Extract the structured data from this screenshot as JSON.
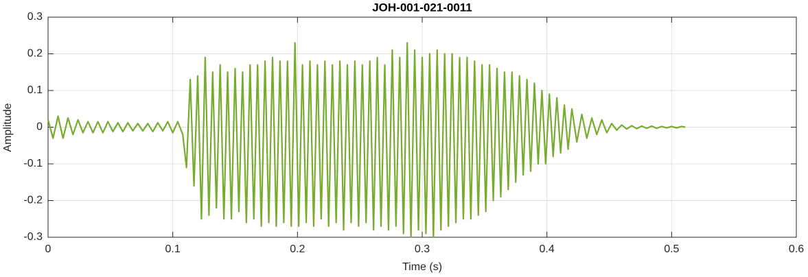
{
  "chart_data": {
    "type": "line",
    "title": "JOH-001-021-0011",
    "x_label": "Time (s)",
    "y_label": "Amplitude",
    "color": "#77ac30",
    "grid": true,
    "xlim": [
      0,
      0.6
    ],
    "xticks": [
      0,
      0.1,
      0.2,
      0.3,
      0.4,
      0.5,
      0.6
    ],
    "ylim": [
      -0.3,
      0.3
    ],
    "yticks": [
      -0.3,
      -0.2,
      -0.1,
      0,
      0.1,
      0.2,
      0.3
    ],
    "x": [
      0,
      0.004,
      0.008,
      0.012,
      0.016,
      0.02,
      0.024,
      0.028,
      0.032,
      0.036,
      0.04,
      0.044,
      0.048,
      0.052,
      0.056,
      0.06,
      0.064,
      0.068,
      0.072,
      0.076,
      0.08,
      0.084,
      0.088,
      0.092,
      0.096,
      0.1,
      0.104,
      0.108,
      0.111,
      0.114,
      0.117,
      0.12,
      0.123,
      0.126,
      0.129,
      0.132,
      0.135,
      0.138,
      0.141,
      0.144,
      0.147,
      0.15,
      0.153,
      0.156,
      0.159,
      0.162,
      0.165,
      0.168,
      0.171,
      0.174,
      0.177,
      0.18,
      0.183,
      0.186,
      0.189,
      0.192,
      0.195,
      0.198,
      0.201,
      0.204,
      0.207,
      0.21,
      0.213,
      0.216,
      0.219,
      0.222,
      0.225,
      0.228,
      0.231,
      0.234,
      0.237,
      0.24,
      0.243,
      0.246,
      0.249,
      0.252,
      0.255,
      0.258,
      0.261,
      0.264,
      0.267,
      0.27,
      0.273,
      0.276,
      0.279,
      0.282,
      0.285,
      0.288,
      0.291,
      0.294,
      0.297,
      0.3,
      0.303,
      0.306,
      0.309,
      0.312,
      0.315,
      0.318,
      0.321,
      0.324,
      0.327,
      0.33,
      0.333,
      0.336,
      0.339,
      0.342,
      0.345,
      0.348,
      0.351,
      0.354,
      0.357,
      0.36,
      0.363,
      0.366,
      0.369,
      0.372,
      0.375,
      0.378,
      0.381,
      0.384,
      0.387,
      0.39,
      0.393,
      0.396,
      0.399,
      0.402,
      0.405,
      0.408,
      0.411,
      0.414,
      0.417,
      0.42,
      0.424,
      0.428,
      0.432,
      0.436,
      0.44,
      0.444,
      0.448,
      0.452,
      0.456,
      0.46,
      0.464,
      0.468,
      0.472,
      0.476,
      0.48,
      0.484,
      0.488,
      0.492,
      0.496,
      0.5,
      0.504,
      0.508,
      0.511
    ],
    "values": [
      0.02,
      -0.03,
      0.03,
      -0.03,
      0.025,
      -0.02,
      0.02,
      -0.015,
      0.015,
      -0.015,
      0.015,
      -0.015,
      0.015,
      -0.012,
      0.012,
      -0.012,
      0.012,
      -0.01,
      0.01,
      -0.01,
      0.01,
      -0.012,
      0.012,
      -0.01,
      0.015,
      -0.015,
      0.015,
      -0.02,
      -0.11,
      0.13,
      -0.16,
      0.14,
      -0.25,
      0.19,
      -0.24,
      0.15,
      -0.22,
      0.17,
      -0.25,
      0.15,
      -0.25,
      0.16,
      -0.23,
      0.15,
      -0.26,
      0.17,
      -0.25,
      0.17,
      -0.27,
      0.18,
      -0.26,
      0.19,
      -0.27,
      0.18,
      -0.26,
      0.18,
      -0.27,
      0.23,
      -0.27,
      0.17,
      -0.26,
      0.18,
      -0.27,
      0.17,
      -0.25,
      0.18,
      -0.27,
      0.17,
      -0.26,
      0.18,
      -0.28,
      0.17,
      -0.26,
      0.18,
      -0.27,
      0.17,
      -0.26,
      0.18,
      -0.28,
      0.19,
      -0.27,
      0.17,
      -0.28,
      0.21,
      -0.27,
      0.19,
      -0.29,
      0.23,
      -0.3,
      0.21,
      -0.28,
      0.19,
      -0.29,
      0.2,
      -0.3,
      0.21,
      -0.28,
      0.2,
      -0.27,
      0.2,
      -0.26,
      0.19,
      -0.25,
      0.19,
      -0.25,
      0.18,
      -0.24,
      0.17,
      -0.23,
      0.17,
      -0.2,
      0.16,
      -0.19,
      0.15,
      -0.17,
      0.15,
      -0.15,
      0.14,
      -0.13,
      0.13,
      -0.12,
      0.12,
      -0.1,
      0.1,
      -0.1,
      0.09,
      -0.08,
      0.08,
      -0.07,
      0.06,
      -0.06,
      0.05,
      -0.04,
      0.035,
      -0.03,
      0.025,
      -0.02,
      0.02,
      -0.015,
      0.01,
      -0.008,
      0.006,
      -0.005,
      0.004,
      -0.004,
      0.003,
      -0.003,
      0.003,
      -0.003,
      0.002,
      -0.002,
      0.002,
      -0.002,
      0.002,
      0
    ]
  }
}
